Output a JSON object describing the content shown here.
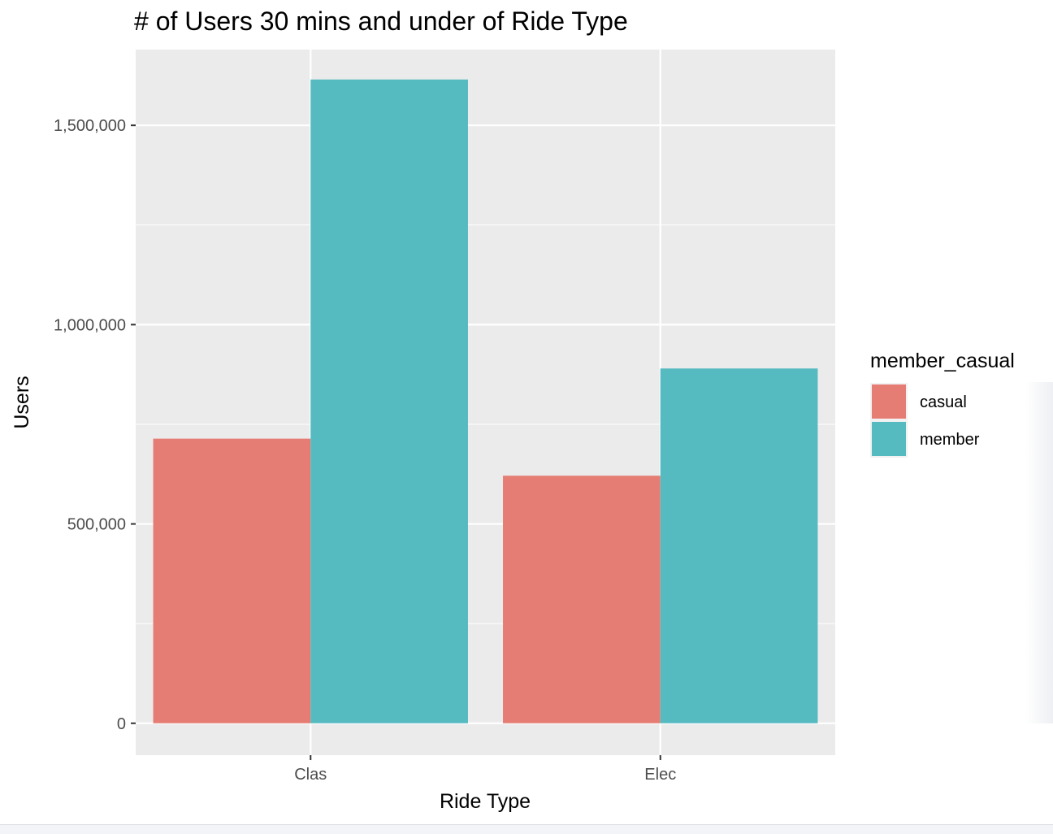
{
  "chart_data": {
    "type": "bar",
    "title": "# of Users 30 mins and under of Ride Type",
    "xlabel": "Ride Type",
    "ylabel": "Users",
    "categories": [
      "Clas",
      "Elec"
    ],
    "series": [
      {
        "name": "casual",
        "color": "#e67d74",
        "values": [
          714000,
          621000
        ]
      },
      {
        "name": "member",
        "color": "#56bbc1",
        "values": [
          1615000,
          890000
        ]
      }
    ],
    "ylim": [
      -80000,
      1690000
    ],
    "yticks": [
      {
        "value": 0,
        "label": "0"
      },
      {
        "value": 500000,
        "label": "500,000"
      },
      {
        "value": 1000000,
        "label": "1,000,000"
      },
      {
        "value": 1500000,
        "label": "1,500,000"
      }
    ],
    "legend": {
      "title": "member_casual",
      "placement": "right"
    },
    "grid": true,
    "panel_background": "#ebebeb"
  }
}
